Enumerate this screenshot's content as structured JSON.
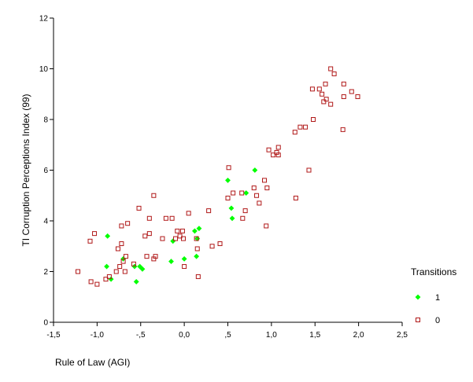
{
  "chart_data": {
    "type": "scatter",
    "title": "",
    "xlabel": "Rule of Law (AGI)",
    "ylabel": "TI Corruption Perceptions Index (99)",
    "xlim": [
      -1.5,
      2.5
    ],
    "ylim": [
      0,
      12
    ],
    "x_ticks": [
      -1.5,
      -1.0,
      -0.5,
      0.0,
      0.5,
      1.0,
      1.5,
      2.0,
      2.5
    ],
    "x_tick_labels": [
      "-1,5",
      "-1,0",
      "-,5",
      "0,0",
      ",5",
      "1,0",
      "1,5",
      "2,0",
      "2,5"
    ],
    "y_ticks": [
      0,
      2,
      4,
      6,
      8,
      10,
      12
    ],
    "y_tick_labels": [
      "0",
      "2",
      "4",
      "6",
      "8",
      "10",
      "12"
    ],
    "grid": false,
    "legend": {
      "title": "Transitions",
      "placement": "right",
      "entries": [
        {
          "label": "1",
          "marker": "diamond",
          "color": "#00ff00"
        },
        {
          "label": "0",
          "marker": "square-open",
          "color": "#b01818"
        }
      ]
    },
    "series": [
      {
        "name": "1",
        "marker": "diamond",
        "color": "#00ff00",
        "points": [
          [
            -0.89,
            2.2
          ],
          [
            -0.88,
            3.4
          ],
          [
            -0.84,
            1.7
          ],
          [
            -0.7,
            2.5
          ],
          [
            -0.57,
            2.2
          ],
          [
            -0.55,
            1.6
          ],
          [
            -0.51,
            2.2
          ],
          [
            -0.48,
            2.1
          ],
          [
            -0.15,
            2.4
          ],
          [
            -0.13,
            3.2
          ],
          [
            0.0,
            2.5
          ],
          [
            0.12,
            3.6
          ],
          [
            0.14,
            2.6
          ],
          [
            0.15,
            3.3
          ],
          [
            0.17,
            3.7
          ],
          [
            0.5,
            5.6
          ],
          [
            0.54,
            4.5
          ],
          [
            0.55,
            4.1
          ],
          [
            0.71,
            5.1
          ],
          [
            0.81,
            6.0
          ]
        ]
      },
      {
        "name": "0",
        "marker": "square-open",
        "color": "#b01818",
        "points": [
          [
            -1.22,
            2.0
          ],
          [
            -1.08,
            3.2
          ],
          [
            -1.07,
            1.6
          ],
          [
            -1.03,
            3.5
          ],
          [
            -1.0,
            1.5
          ],
          [
            -0.9,
            1.7
          ],
          [
            -0.86,
            1.8
          ],
          [
            -0.78,
            2.0
          ],
          [
            -0.76,
            2.9
          ],
          [
            -0.74,
            2.2
          ],
          [
            -0.72,
            3.1
          ],
          [
            -0.72,
            3.8
          ],
          [
            -0.7,
            2.4
          ],
          [
            -0.68,
            2.0
          ],
          [
            -0.67,
            2.6
          ],
          [
            -0.65,
            3.9
          ],
          [
            -0.58,
            2.3
          ],
          [
            -0.52,
            4.5
          ],
          [
            -0.45,
            3.4
          ],
          [
            -0.43,
            2.6
          ],
          [
            -0.4,
            4.1
          ],
          [
            -0.4,
            3.5
          ],
          [
            -0.35,
            2.5
          ],
          [
            -0.35,
            5.0
          ],
          [
            -0.33,
            2.6
          ],
          [
            -0.25,
            3.3
          ],
          [
            -0.21,
            4.1
          ],
          [
            -0.14,
            4.1
          ],
          [
            -0.1,
            3.3
          ],
          [
            -0.08,
            3.6
          ],
          [
            -0.05,
            3.4
          ],
          [
            -0.02,
            3.6
          ],
          [
            -0.01,
            3.3
          ],
          [
            0.0,
            2.2
          ],
          [
            0.05,
            4.3
          ],
          [
            0.14,
            3.3
          ],
          [
            0.15,
            2.9
          ],
          [
            0.16,
            1.8
          ],
          [
            0.28,
            4.4
          ],
          [
            0.32,
            3.0
          ],
          [
            0.41,
            3.1
          ],
          [
            0.5,
            4.9
          ],
          [
            0.51,
            6.1
          ],
          [
            0.56,
            5.1
          ],
          [
            0.66,
            5.1
          ],
          [
            0.67,
            4.1
          ],
          [
            0.7,
            4.4
          ],
          [
            0.8,
            5.3
          ],
          [
            0.83,
            5.0
          ],
          [
            0.86,
            4.7
          ],
          [
            0.92,
            5.6
          ],
          [
            0.94,
            3.8
          ],
          [
            0.95,
            5.3
          ],
          [
            0.97,
            6.8
          ],
          [
            1.02,
            6.6
          ],
          [
            1.06,
            6.7
          ],
          [
            1.08,
            6.9
          ],
          [
            1.08,
            6.6
          ],
          [
            1.27,
            7.5
          ],
          [
            1.28,
            4.9
          ],
          [
            1.33,
            7.7
          ],
          [
            1.39,
            7.7
          ],
          [
            1.43,
            6.0
          ],
          [
            1.47,
            9.2
          ],
          [
            1.48,
            8.0
          ],
          [
            1.55,
            9.2
          ],
          [
            1.58,
            9.0
          ],
          [
            1.6,
            8.7
          ],
          [
            1.62,
            9.4
          ],
          [
            1.63,
            8.8
          ],
          [
            1.68,
            10.0
          ],
          [
            1.68,
            8.6
          ],
          [
            1.72,
            9.8
          ],
          [
            1.82,
            7.6
          ],
          [
            1.83,
            9.4
          ],
          [
            1.83,
            8.9
          ],
          [
            1.92,
            9.1
          ],
          [
            1.99,
            8.9
          ]
        ]
      }
    ]
  }
}
